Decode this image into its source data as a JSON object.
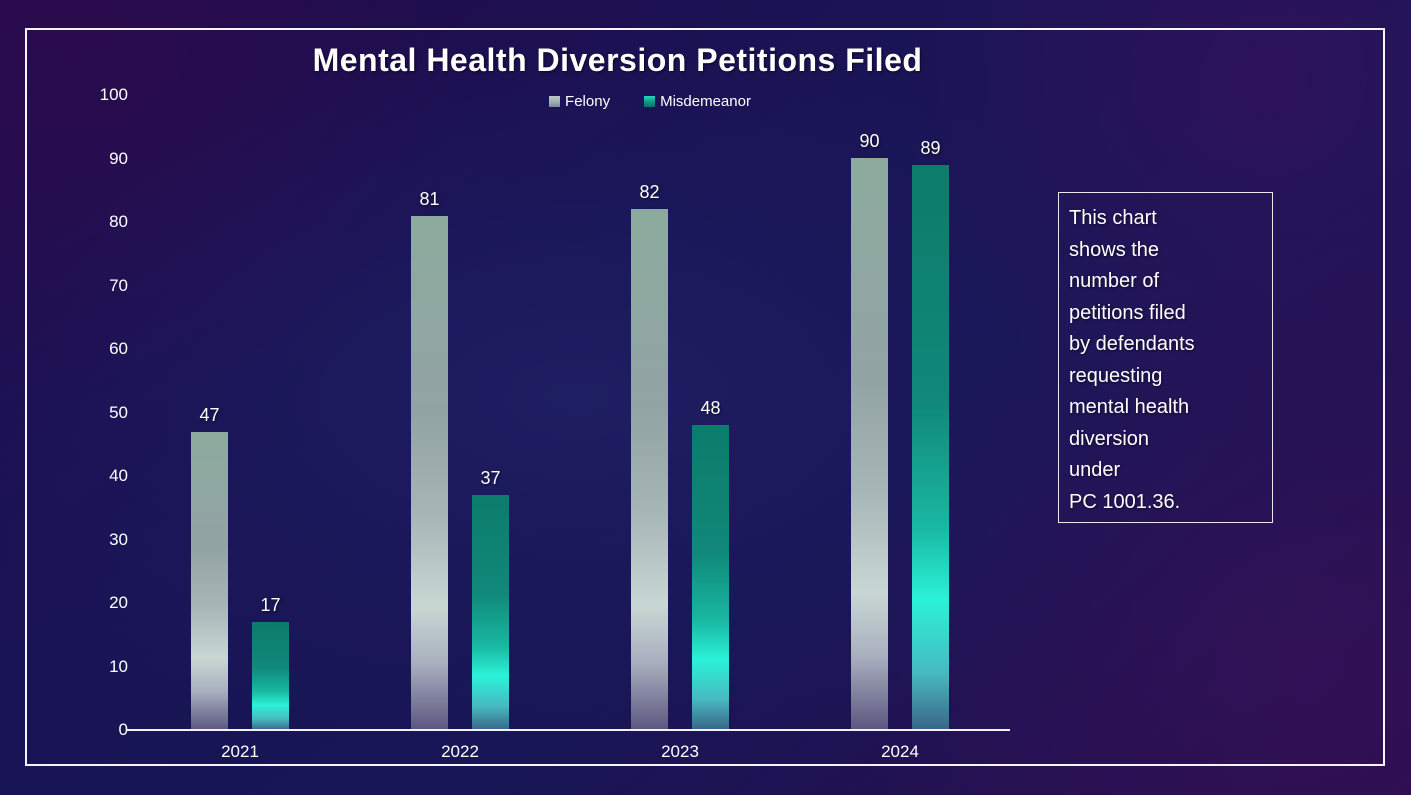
{
  "slide": {
    "title": "Mental Health Diversion Petitions Filed"
  },
  "chart_data": {
    "type": "bar",
    "title": "Mental Health Diversion Petitions Filed",
    "categories": [
      "2021",
      "2022",
      "2023",
      "2024"
    ],
    "series": [
      {
        "name": "Felony",
        "values": [
          47,
          81,
          82,
          90
        ]
      },
      {
        "name": "Misdemeanor",
        "values": [
          17,
          37,
          48,
          89
        ]
      }
    ],
    "xlabel": "",
    "ylabel": "",
    "ylim": [
      0,
      100
    ],
    "yticks": [
      0,
      10,
      20,
      30,
      40,
      50,
      60,
      70,
      80,
      90,
      100
    ],
    "grid": false,
    "legend_position": "top-center",
    "data_labels": true
  },
  "annotation": {
    "lines": [
      "This chart",
      "shows the",
      "number of",
      "petitions filed",
      "by defendants",
      "requesting",
      "mental health",
      "diversion",
      "under",
      "PC 1001.36."
    ]
  },
  "colors": {
    "background_center": "#1e1e62",
    "background_corner": "#2a0d4e",
    "text": "#ffffff",
    "border": "#f5f5fa",
    "axis_line": "#f2f2f7",
    "felony_top": "#8cab9e",
    "felony_light": "#c9d7d3",
    "felony_bottom": "#5b5680",
    "misdemeanor_top": "#0c7c6b",
    "misdemeanor_bright": "#2bf2d8",
    "misdemeanor_bottom": "#3a6486"
  }
}
